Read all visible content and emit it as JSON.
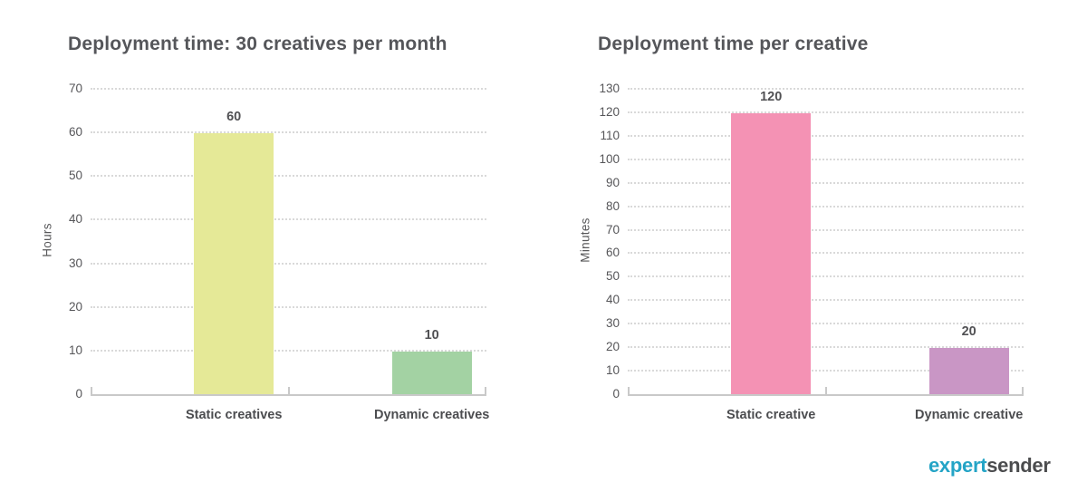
{
  "chart_data": [
    {
      "type": "bar",
      "title": "Deployment time: 30 creatives per month",
      "ylabel": "Hours",
      "xlabel": "",
      "categories": [
        "Static creatives",
        "Dynamic creatives"
      ],
      "values": [
        60,
        10
      ],
      "bar_colors": [
        "#e5e997",
        "#a3d2a3"
      ],
      "yticks": [
        0,
        10,
        20,
        30,
        40,
        50,
        60,
        70
      ],
      "ylim": [
        0,
        70
      ],
      "grid": "horizontal-dotted",
      "legend": "none",
      "data_labels": true
    },
    {
      "type": "bar",
      "title": "Deployment time per creative",
      "ylabel": "Minutes",
      "xlabel": "",
      "categories": [
        "Static creative",
        "Dynamic creative"
      ],
      "values": [
        120,
        20
      ],
      "bar_colors": [
        "#f492b4",
        "#c996c5"
      ],
      "yticks": [
        0,
        10,
        20,
        30,
        40,
        50,
        60,
        70,
        80,
        90,
        100,
        110,
        120,
        130
      ],
      "ylim": [
        0,
        130
      ],
      "grid": "horizontal-dotted",
      "legend": "none",
      "data_labels": true
    }
  ],
  "logo": {
    "part1": "expert",
    "part2": "sender",
    "color1": "#24a4c6",
    "color2": "#4b4c4e"
  },
  "colors": {
    "title_text": "#55565a",
    "tick_text": "#565659",
    "gridline": "#d9d9d9",
    "axis_line": "#c9c9c9",
    "background": "#ffffff"
  }
}
